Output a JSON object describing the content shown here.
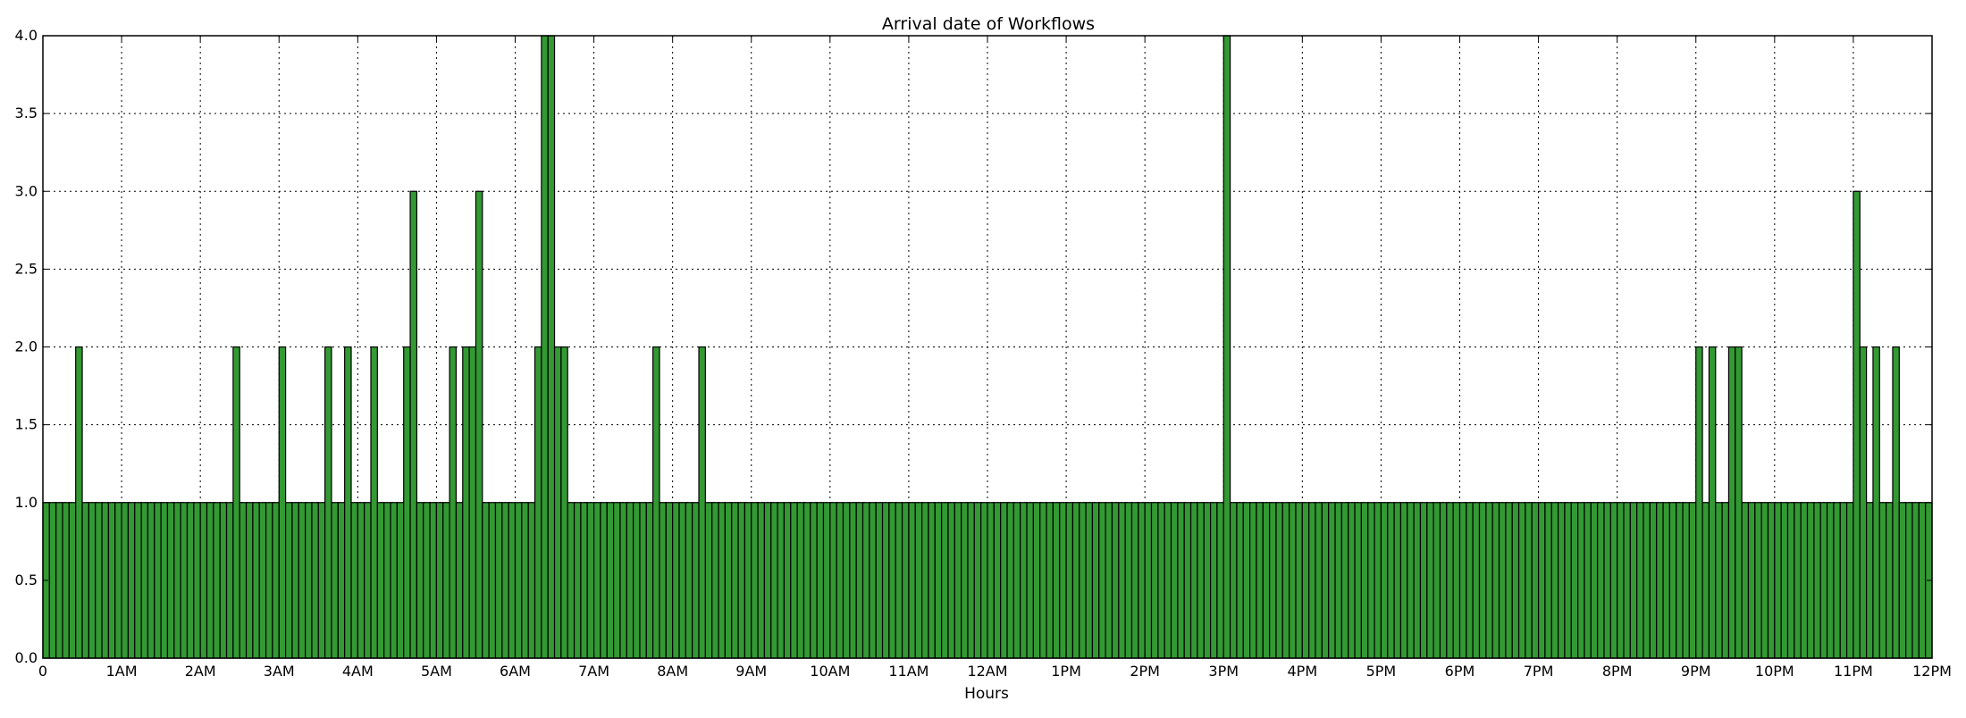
{
  "chart_data": {
    "type": "bar",
    "title": "Arrival date of Workflows",
    "xlabel": "Hours",
    "ylabel": "",
    "xlim": [
      0,
      24
    ],
    "ylim": [
      0,
      4
    ],
    "grid": true,
    "bar_color": "#339933",
    "bar_edge_color": "#000000",
    "bin_width_hours": 0.08333,
    "x_ticks": [
      {
        "value": 0,
        "label": "0"
      },
      {
        "value": 1,
        "label": "1AM"
      },
      {
        "value": 2,
        "label": "2AM"
      },
      {
        "value": 3,
        "label": "3AM"
      },
      {
        "value": 4,
        "label": "4AM"
      },
      {
        "value": 5,
        "label": "5AM"
      },
      {
        "value": 6,
        "label": "6AM"
      },
      {
        "value": 7,
        "label": "7AM"
      },
      {
        "value": 8,
        "label": "8AM"
      },
      {
        "value": 9,
        "label": "9AM"
      },
      {
        "value": 10,
        "label": "10AM"
      },
      {
        "value": 11,
        "label": "11AM"
      },
      {
        "value": 12,
        "label": "12AM"
      },
      {
        "value": 13,
        "label": "1PM"
      },
      {
        "value": 14,
        "label": "2PM"
      },
      {
        "value": 15,
        "label": "3PM"
      },
      {
        "value": 16,
        "label": "4PM"
      },
      {
        "value": 17,
        "label": "5PM"
      },
      {
        "value": 18,
        "label": "6PM"
      },
      {
        "value": 19,
        "label": "7PM"
      },
      {
        "value": 20,
        "label": "8PM"
      },
      {
        "value": 21,
        "label": "9PM"
      },
      {
        "value": 22,
        "label": "10PM"
      },
      {
        "value": 23,
        "label": "11PM"
      },
      {
        "value": 24,
        "label": "12PM"
      }
    ],
    "y_ticks": [
      {
        "value": 0,
        "label": "0.0"
      },
      {
        "value": 0.5,
        "label": "0.5"
      },
      {
        "value": 1,
        "label": "1.0"
      },
      {
        "value": 1.5,
        "label": "1.5"
      },
      {
        "value": 2,
        "label": "2.0"
      },
      {
        "value": 2.5,
        "label": "2.5"
      },
      {
        "value": 3,
        "label": "3.0"
      },
      {
        "value": 3.5,
        "label": "3.5"
      },
      {
        "value": 4,
        "label": "4.0"
      }
    ],
    "values": [
      1,
      1,
      1,
      1,
      1,
      2,
      1,
      1,
      1,
      1,
      1,
      1,
      1,
      1,
      1,
      1,
      1,
      1,
      1,
      1,
      1,
      1,
      1,
      1,
      1,
      1,
      1,
      1,
      1,
      2,
      1,
      1,
      1,
      1,
      1,
      1,
      2,
      1,
      1,
      1,
      1,
      1,
      1,
      2,
      1,
      1,
      2,
      1,
      1,
      1,
      2,
      1,
      1,
      1,
      1,
      2,
      3,
      1,
      1,
      1,
      1,
      1,
      2,
      1,
      2,
      2,
      3,
      1,
      1,
      1,
      1,
      1,
      1,
      1,
      1,
      2,
      4,
      4,
      2,
      2,
      1,
      1,
      1,
      1,
      1,
      1,
      1,
      1,
      1,
      1,
      1,
      1,
      1,
      2,
      1,
      1,
      1,
      1,
      1,
      1,
      2,
      1,
      1,
      1,
      1,
      1,
      1,
      1,
      1,
      1,
      1,
      1,
      1,
      1,
      1,
      1,
      1,
      1,
      1,
      1,
      1,
      1,
      1,
      1,
      1,
      1,
      1,
      1,
      1,
      1,
      1,
      1,
      1,
      1,
      1,
      1,
      1,
      1,
      1,
      1,
      1,
      1,
      1,
      1,
      1,
      1,
      1,
      1,
      1,
      1,
      1,
      1,
      1,
      1,
      1,
      1,
      1,
      1,
      1,
      1,
      1,
      1,
      1,
      1,
      1,
      1,
      1,
      1,
      1,
      1,
      1,
      1,
      1,
      1,
      1,
      1,
      1,
      1,
      1,
      1,
      4,
      1,
      1,
      1,
      1,
      1,
      1,
      1,
      1,
      1,
      1,
      1,
      1,
      1,
      1,
      1,
      1,
      1,
      1,
      1,
      1,
      1,
      1,
      1,
      1,
      1,
      1,
      1,
      1,
      1,
      1,
      1,
      1,
      1,
      1,
      1,
      1,
      1,
      1,
      1,
      1,
      1,
      1,
      1,
      1,
      1,
      1,
      1,
      1,
      1,
      1,
      1,
      1,
      1,
      1,
      1,
      1,
      1,
      1,
      1,
      1,
      1,
      1,
      1,
      1,
      1,
      1,
      1,
      1,
      1,
      1,
      1,
      2,
      1,
      2,
      1,
      1,
      2,
      2,
      1,
      1,
      1,
      1,
      1,
      1,
      1,
      1,
      1,
      1,
      1,
      1,
      1,
      1,
      1,
      1,
      1,
      3,
      2,
      1,
      2,
      1,
      1,
      2,
      1,
      1,
      1,
      1,
      1
    ]
  }
}
